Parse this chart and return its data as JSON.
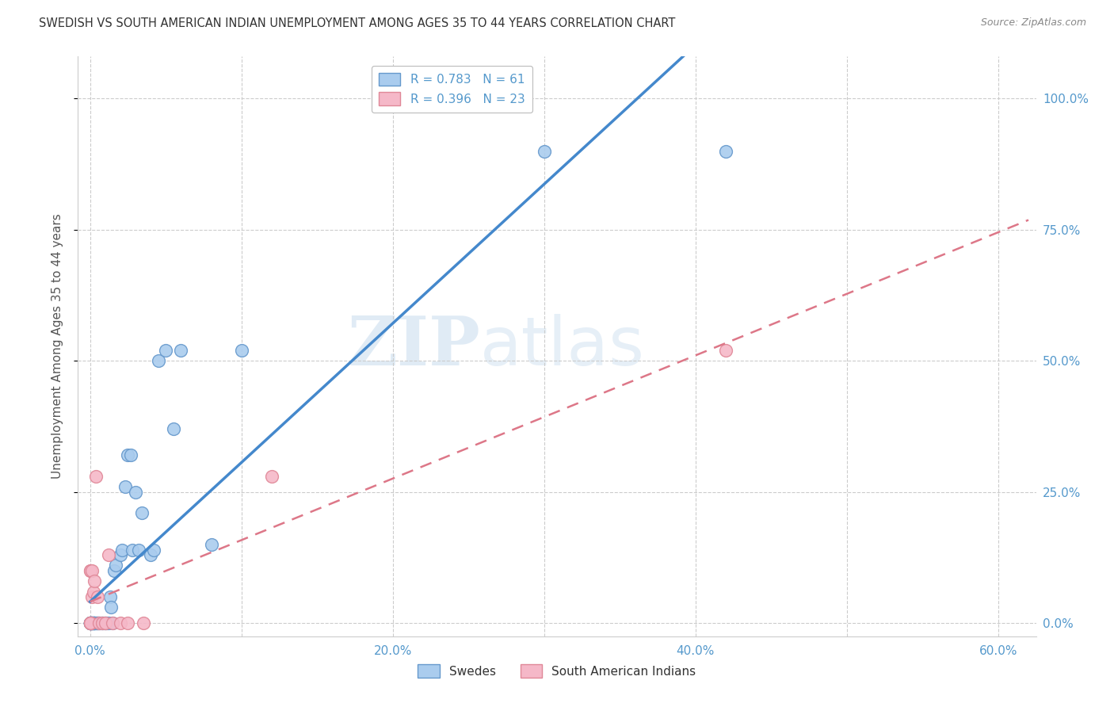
{
  "title": "SWEDISH VS SOUTH AMERICAN INDIAN UNEMPLOYMENT AMONG AGES 35 TO 44 YEARS CORRELATION CHART",
  "source": "Source: ZipAtlas.com",
  "ylabel": "Unemployment Among Ages 35 to 44 years",
  "swedes_R": "0.783",
  "swedes_N": "61",
  "sam_indian_R": "0.396",
  "sam_indian_N": "23",
  "legend_label_swedes": "Swedes",
  "legend_label_sam": "South American Indians",
  "swedes_color": "#aaccee",
  "sam_color": "#f5b8c8",
  "swedes_edge_color": "#6699cc",
  "sam_edge_color": "#e08898",
  "swedes_line_color": "#4488cc",
  "sam_line_color": "#dd7788",
  "background_color": "#ffffff",
  "watermark_zip": "ZIP",
  "watermark_atlas": "atlas",
  "grid_color": "#cccccc",
  "title_color": "#333333",
  "source_color": "#888888",
  "tick_color": "#5599cc",
  "ylabel_color": "#555555",
  "swedes_x": [
    0.0,
    0.0,
    0.0,
    0.0,
    0.0,
    0.0,
    0.0,
    0.0,
    0.0,
    0.0,
    0.001,
    0.001,
    0.001,
    0.001,
    0.001,
    0.002,
    0.002,
    0.002,
    0.002,
    0.003,
    0.003,
    0.003,
    0.004,
    0.004,
    0.005,
    0.005,
    0.005,
    0.006,
    0.006,
    0.007,
    0.008,
    0.008,
    0.009,
    0.01,
    0.01,
    0.011,
    0.012,
    0.013,
    0.014,
    0.015,
    0.016,
    0.017,
    0.02,
    0.021,
    0.023,
    0.025,
    0.027,
    0.028,
    0.03,
    0.032,
    0.034,
    0.04,
    0.042,
    0.045,
    0.05,
    0.055,
    0.06,
    0.08,
    0.1,
    0.3,
    0.42
  ],
  "swedes_y": [
    0.0,
    0.0,
    0.0,
    0.0,
    0.0,
    0.0,
    0.0,
    0.0,
    0.0,
    0.0,
    0.0,
    0.0,
    0.0,
    0.0,
    0.0,
    0.0,
    0.0,
    0.0,
    0.0,
    0.0,
    0.0,
    0.0,
    0.0,
    0.0,
    0.0,
    0.0,
    0.0,
    0.0,
    0.0,
    0.0,
    0.0,
    0.0,
    0.0,
    0.0,
    0.0,
    0.0,
    0.0,
    0.05,
    0.03,
    0.0,
    0.1,
    0.11,
    0.13,
    0.14,
    0.26,
    0.32,
    0.32,
    0.14,
    0.25,
    0.14,
    0.21,
    0.13,
    0.14,
    0.5,
    0.52,
    0.37,
    0.52,
    0.15,
    0.52,
    0.9,
    0.9
  ],
  "sam_x": [
    0.0,
    0.0,
    0.0,
    0.0,
    0.0,
    0.0,
    0.0,
    0.001,
    0.001,
    0.002,
    0.003,
    0.004,
    0.005,
    0.006,
    0.008,
    0.01,
    0.012,
    0.015,
    0.02,
    0.025,
    0.035,
    0.12,
    0.42
  ],
  "sam_y": [
    0.0,
    0.0,
    0.0,
    0.0,
    0.1,
    0.1,
    0.0,
    0.05,
    0.1,
    0.06,
    0.08,
    0.28,
    0.05,
    0.0,
    0.0,
    0.0,
    0.13,
    0.0,
    0.0,
    0.0,
    0.0,
    0.28,
    0.52
  ],
  "xlim": [
    -0.008,
    0.625
  ],
  "ylim": [
    -0.025,
    1.08
  ],
  "xticks": [
    0.0,
    0.1,
    0.2,
    0.3,
    0.4,
    0.5,
    0.6
  ],
  "xtick_labels": [
    "0.0%",
    "",
    "20.0%",
    "",
    "40.0%",
    "",
    "60.0%"
  ],
  "yticks": [
    0.0,
    0.25,
    0.5,
    0.75,
    1.0
  ],
  "ytick_labels": [
    "0.0%",
    "25.0%",
    "50.0%",
    "75.0%",
    "100.0%"
  ]
}
